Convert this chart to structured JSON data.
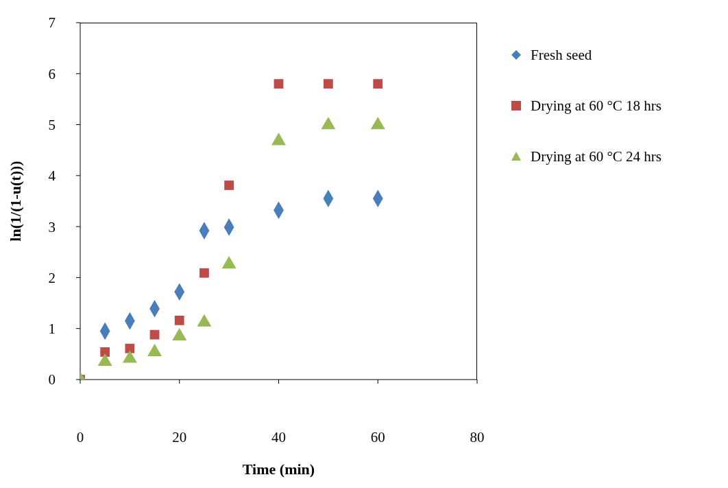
{
  "chart_data": {
    "type": "scatter",
    "xlabel": "Time (min)",
    "ylabel": "ln(1/(1-u(t)))",
    "x": [
      0,
      5,
      10,
      15,
      20,
      25,
      30,
      40,
      50,
      60
    ],
    "xlim": [
      0,
      80
    ],
    "xticks": [
      0,
      20,
      40,
      60,
      80
    ],
    "ylim": [
      0,
      7
    ],
    "yticks": [
      0,
      1,
      2,
      3,
      4,
      5,
      6,
      7
    ],
    "grid": false,
    "legend": "right",
    "series": [
      {
        "name": "Fresh seed",
        "color": "#4a7ebb",
        "marker": "diamond",
        "values": [
          null,
          0.95,
          1.15,
          1.39,
          1.72,
          2.92,
          2.99,
          3.32,
          3.55,
          3.55
        ]
      },
      {
        "name": "Drying at 60 °C 18 hrs",
        "color": "#be4b48",
        "marker": "square",
        "values": [
          0,
          0.54,
          0.61,
          0.88,
          1.16,
          2.09,
          3.81,
          5.8,
          5.8,
          5.8
        ]
      },
      {
        "name": "Drying at 60 °C 24 hrs",
        "color": "#98b954",
        "marker": "triangle",
        "values": [
          0,
          0.35,
          0.41,
          0.54,
          0.85,
          1.12,
          2.26,
          4.68,
          4.99,
          4.99
        ]
      }
    ]
  }
}
